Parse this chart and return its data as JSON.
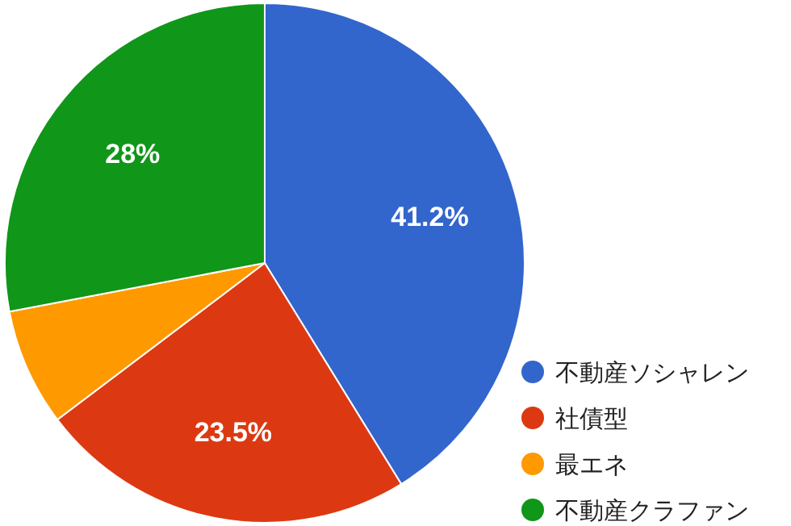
{
  "chart_data": {
    "type": "pie",
    "categories": [
      "不動産ソシャレン",
      "社債型",
      "最エネ",
      "不動産クラファン"
    ],
    "values": [
      41.2,
      23.5,
      7.3,
      28
    ],
    "colors": [
      "#3366cc",
      "#dc3912",
      "#ff9900",
      "#109618"
    ],
    "value_labels": [
      "41.2%",
      "23.5%",
      null,
      "28%"
    ],
    "legend": "right"
  }
}
